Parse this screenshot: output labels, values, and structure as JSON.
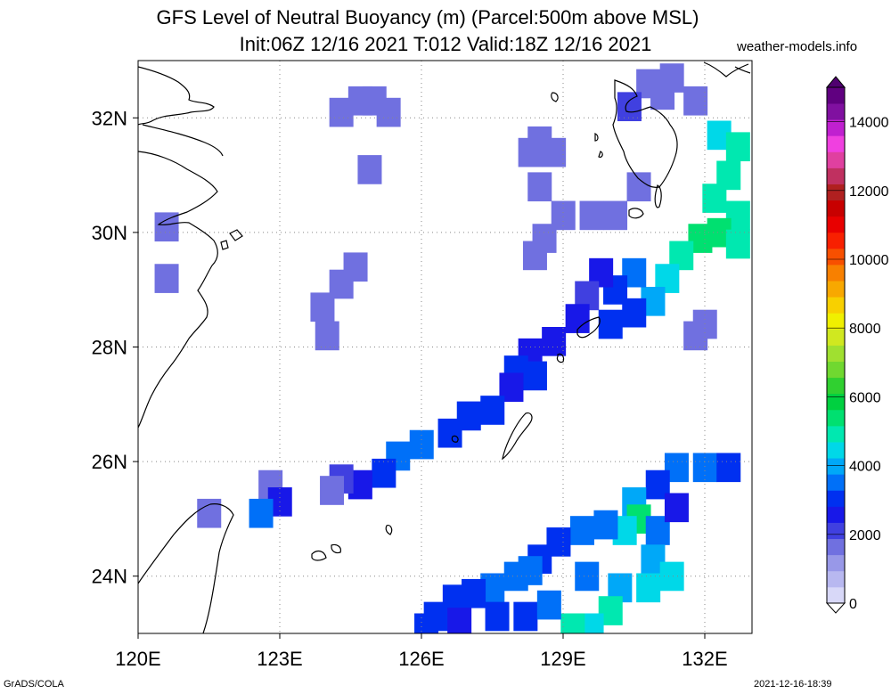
{
  "header": {
    "title_line1": "GFS Level of Neutral Buoyancy (m) (Parcel:500m above MSL)",
    "title_line2": "Init:06Z 12/16 2021 T:012 Valid:18Z 12/16 2021",
    "site": "weather-models.info"
  },
  "footer": {
    "left": "GrADS/COLA",
    "right": "2021-12-16-18:39"
  },
  "map": {
    "lon_range": [
      120,
      133
    ],
    "lat_range": [
      23,
      33
    ],
    "x_ticks": [
      {
        "value": 120,
        "label": "120E"
      },
      {
        "value": 123,
        "label": "123E"
      },
      {
        "value": 126,
        "label": "126E"
      },
      {
        "value": 129,
        "label": "129E"
      },
      {
        "value": 132,
        "label": "132E"
      }
    ],
    "y_ticks": [
      {
        "value": 24,
        "label": "24N"
      },
      {
        "value": 26,
        "label": "26N"
      },
      {
        "value": 28,
        "label": "28N"
      },
      {
        "value": 30,
        "label": "30N"
      },
      {
        "value": 32,
        "label": "32N"
      }
    ],
    "grid": "dotted"
  },
  "colorbar": {
    "range": [
      0,
      15000
    ],
    "ticks": [
      {
        "value": 0,
        "label": "0"
      },
      {
        "value": 2000,
        "label": "2000"
      },
      {
        "value": 4000,
        "label": "4000"
      },
      {
        "value": 6000,
        "label": "6000"
      },
      {
        "value": 8000,
        "label": "8000"
      },
      {
        "value": 10000,
        "label": "10000"
      },
      {
        "value": 12000,
        "label": "12000"
      },
      {
        "value": 14000,
        "label": "14000"
      }
    ],
    "colors": [
      "#d8d8f8",
      "#b8b8f0",
      "#9898e8",
      "#7070e0",
      "#4040e0",
      "#1818e8",
      "#0030f0",
      "#0070f8",
      "#00a8f8",
      "#00d8e8",
      "#00e8b0",
      "#00e070",
      "#00d040",
      "#30d030",
      "#70d830",
      "#a0e030",
      "#d0e820",
      "#f0f000",
      "#f8d000",
      "#f8a800",
      "#f88000",
      "#f85000",
      "#f82000",
      "#e80000",
      "#c80000",
      "#b02020",
      "#c03060",
      "#e040a0",
      "#f040e0",
      "#c020d0",
      "#8010a0",
      "#600080"
    ]
  },
  "chart_data": {
    "type": "heatmap",
    "variable": "Level of Neutral Buoyancy (m)",
    "units": "m",
    "lon_range": [
      120,
      133
    ],
    "lat_range": [
      23,
      33
    ],
    "cells": [
      [
        124.7,
        32.3,
        1800
      ],
      [
        125.0,
        32.3,
        1700
      ],
      [
        125.3,
        32.1,
        1600
      ],
      [
        124.3,
        32.1,
        1800
      ],
      [
        124.9,
        31.1,
        1700
      ],
      [
        128.5,
        31.6,
        1500
      ],
      [
        128.3,
        31.4,
        1600
      ],
      [
        128.8,
        31.4,
        1700
      ],
      [
        130.8,
        32.6,
        1700
      ],
      [
        131.3,
        32.7,
        1600
      ],
      [
        131.1,
        32.4,
        1800
      ],
      [
        131.8,
        32.3,
        1700
      ],
      [
        130.4,
        32.2,
        1900
      ],
      [
        132.3,
        31.7,
        4500
      ],
      [
        132.7,
        31.5,
        4900
      ],
      [
        132.5,
        31.0,
        5000
      ],
      [
        132.2,
        30.6,
        4700
      ],
      [
        132.7,
        30.3,
        5100
      ],
      [
        132.3,
        30.0,
        5300
      ],
      [
        132.7,
        29.8,
        5000
      ],
      [
        131.9,
        29.9,
        5200
      ],
      [
        131.5,
        29.6,
        4800
      ],
      [
        131.2,
        29.2,
        4300
      ],
      [
        130.9,
        28.8,
        3800
      ],
      [
        130.5,
        29.3,
        3400
      ],
      [
        130.1,
        29.0,
        3000
      ],
      [
        129.8,
        29.3,
        2400
      ],
      [
        129.5,
        28.9,
        2100
      ],
      [
        130.5,
        28.6,
        3200
      ],
      [
        130.0,
        28.4,
        3000
      ],
      [
        129.3,
        28.5,
        2600
      ],
      [
        128.8,
        28.1,
        2700
      ],
      [
        128.3,
        27.9,
        2600
      ],
      [
        128.0,
        27.6,
        2900
      ],
      [
        128.4,
        27.5,
        3100
      ],
      [
        127.9,
        27.3,
        2500
      ],
      [
        127.5,
        26.9,
        3100
      ],
      [
        127.0,
        26.8,
        3200
      ],
      [
        126.6,
        26.5,
        3000
      ],
      [
        126.0,
        26.3,
        3400
      ],
      [
        125.5,
        26.1,
        3300
      ],
      [
        125.2,
        25.8,
        3000
      ],
      [
        124.7,
        25.6,
        2600
      ],
      [
        124.3,
        25.7,
        1900
      ],
      [
        124.1,
        25.5,
        1700
      ],
      [
        122.8,
        25.6,
        1600
      ],
      [
        123.0,
        25.3,
        2400
      ],
      [
        122.6,
        25.1,
        3300
      ],
      [
        121.5,
        25.1,
        1700
      ],
      [
        120.6,
        30.1,
        1700
      ],
      [
        120.6,
        29.2,
        1800
      ],
      [
        124.3,
        29.1,
        1600
      ],
      [
        124.6,
        29.4,
        1700
      ],
      [
        123.9,
        28.7,
        1700
      ],
      [
        124.0,
        28.2,
        1800
      ],
      [
        128.4,
        29.6,
        1600
      ],
      [
        128.6,
        29.9,
        1700
      ],
      [
        129.0,
        30.3,
        1600
      ],
      [
        129.6,
        30.3,
        1700
      ],
      [
        130.1,
        30.3,
        1500
      ],
      [
        128.5,
        30.8,
        1700
      ],
      [
        130.6,
        30.8,
        1700
      ],
      [
        132.0,
        28.4,
        1800
      ],
      [
        131.8,
        28.2,
        1700
      ],
      [
        131.4,
        25.9,
        3500
      ],
      [
        132.0,
        25.9,
        3400
      ],
      [
        132.5,
        25.9,
        3200
      ],
      [
        131.0,
        25.6,
        3200
      ],
      [
        130.5,
        25.3,
        3800
      ],
      [
        130.6,
        25.0,
        5600
      ],
      [
        130.3,
        24.8,
        4500
      ],
      [
        131.0,
        24.8,
        3700
      ],
      [
        131.4,
        25.2,
        2600
      ],
      [
        129.9,
        24.9,
        3600
      ],
      [
        129.4,
        24.8,
        3400
      ],
      [
        128.9,
        24.6,
        3200
      ],
      [
        128.5,
        24.3,
        3100
      ],
      [
        130.9,
        24.3,
        4100
      ],
      [
        131.3,
        24.0,
        4400
      ],
      [
        130.8,
        23.8,
        4600
      ],
      [
        130.2,
        23.8,
        4200
      ],
      [
        130.0,
        23.4,
        4700
      ],
      [
        129.6,
        23.1,
        4600
      ],
      [
        129.2,
        23.1,
        4800
      ],
      [
        128.3,
        24.1,
        3400
      ],
      [
        128.0,
        24.0,
        3500
      ],
      [
        127.5,
        23.8,
        3300
      ],
      [
        127.1,
        23.7,
        3200
      ],
      [
        126.7,
        23.6,
        3100
      ],
      [
        126.3,
        23.3,
        3000
      ],
      [
        126.1,
        23.1,
        2900
      ],
      [
        126.8,
        23.2,
        2700
      ],
      [
        127.6,
        23.3,
        3000
      ],
      [
        128.2,
        23.3,
        3200
      ],
      [
        128.7,
        23.5,
        3500
      ],
      [
        129.5,
        24.0,
        3700
      ]
    ]
  }
}
